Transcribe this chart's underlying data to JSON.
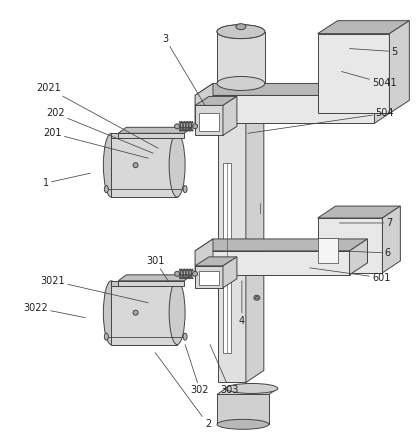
{
  "figsize": [
    4.19,
    4.43
  ],
  "dpi": 100,
  "bg_color": "#ffffff",
  "lc": "#444444",
  "fc_light": "#e8e8e8",
  "fc_mid": "#d0d0d0",
  "fc_dark": "#b8b8b8",
  "fc_darker": "#a0a0a0",
  "lw": 0.7,
  "font_size": 7.0,
  "font_color": "#222222"
}
